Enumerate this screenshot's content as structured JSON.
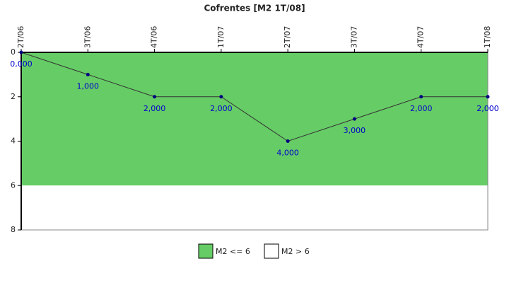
{
  "chart_data": {
    "type": "line",
    "title": "Cofrentes [M2 1T/08]",
    "categories": [
      "2T/06",
      "3T/06",
      "4T/06",
      "1T/07",
      "2T/07",
      "3T/07",
      "4T/07",
      "1T/08"
    ],
    "series": [
      {
        "color": "#333333",
        "marker_color": "#000080",
        "values": [
          0,
          1,
          2,
          2,
          4,
          3,
          2,
          2
        ],
        "value_labels": [
          "0,000",
          "1,000",
          "2,000",
          "2,000",
          "4,000",
          "3,000",
          "2,000",
          "2,000"
        ]
      }
    ],
    "bands": [
      {
        "name": "M2 <= 6",
        "color": "#66cc66",
        "range": [
          0,
          6
        ]
      },
      {
        "name": "M2 > 6",
        "color": "#ffffff",
        "range": [
          6,
          8
        ]
      }
    ],
    "ylim": [
      0,
      8
    ],
    "yticks": [
      0,
      2,
      4,
      6,
      8
    ],
    "y_reversed": true,
    "x_axis_position": "top"
  }
}
